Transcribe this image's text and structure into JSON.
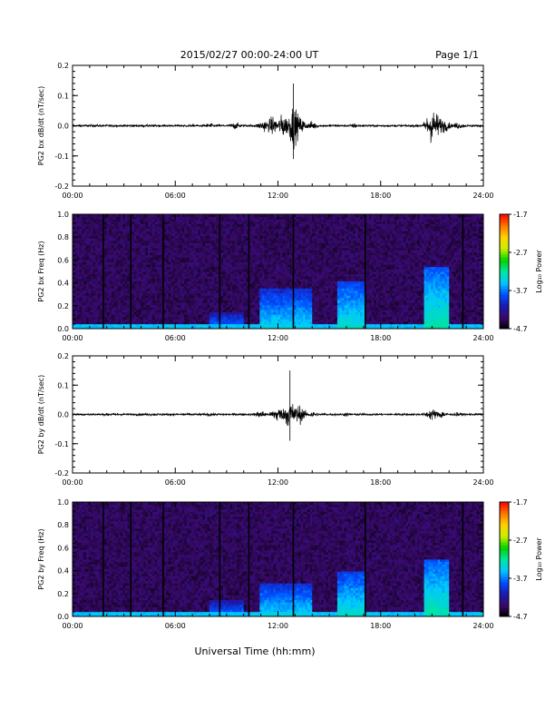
{
  "header": {
    "date_range": "2015/02/27  00:00-24:00 UT",
    "page": "Page 1/1"
  },
  "xlabel": "Universal Time (hh:mm)",
  "colors": {
    "trace": "#000000",
    "axes": "#000000",
    "colormap": [
      "#000000",
      "#3a0a6e",
      "#1a1ab0",
      "#0050ff",
      "#00c8ff",
      "#00e6a0",
      "#00d200",
      "#c8f000",
      "#ffd200",
      "#ff7800",
      "#ff0000"
    ]
  },
  "chart_data": [
    {
      "type": "line",
      "ylabel": "PG2 bx dB/dt (nT/sec)",
      "xlim": [
        0,
        24
      ],
      "ylim": [
        -0.2,
        0.2
      ],
      "xticks": [
        "00:00",
        "06:00",
        "12:00",
        "18:00",
        "24:00"
      ],
      "yticks": [
        "-0.2",
        "-0.1",
        "0.0",
        "0.1",
        "0.2"
      ],
      "ytick_values": [
        -0.2,
        -0.1,
        0.0,
        0.1,
        0.2
      ],
      "noise_floor": 0.006,
      "envelope": [
        {
          "x": 8.0,
          "amp": 0.015
        },
        {
          "x": 9.5,
          "amp": 0.02
        },
        {
          "x": 11.2,
          "amp": 0.035
        },
        {
          "x": 11.7,
          "amp": 0.055
        },
        {
          "x": 12.3,
          "amp": 0.07
        },
        {
          "x": 12.9,
          "amp": 0.12
        },
        {
          "x": 13.3,
          "amp": 0.05
        },
        {
          "x": 14.0,
          "amp": 0.025
        },
        {
          "x": 16.5,
          "amp": 0.015
        },
        {
          "x": 21.0,
          "amp": 0.1
        },
        {
          "x": 21.3,
          "amp": 0.07
        },
        {
          "x": 21.7,
          "amp": 0.04
        },
        {
          "x": 22.5,
          "amp": 0.02
        }
      ],
      "peak_max": 0.14,
      "peak_min": -0.11
    },
    {
      "type": "heatmap",
      "ylabel": "PG2 bx Freq (Hz)",
      "xlim": [
        0,
        24
      ],
      "ylim": [
        0.0,
        1.0
      ],
      "xticks": [
        "00:00",
        "06:00",
        "12:00",
        "18:00",
        "24:00"
      ],
      "yticks": [
        "0.0",
        "0.2",
        "0.4",
        "0.6",
        "0.8",
        "1.0"
      ],
      "ytick_values": [
        0.0,
        0.2,
        0.4,
        0.6,
        0.8,
        1.0
      ],
      "colorbar": {
        "label": "Log₁₀ Power",
        "range": [
          -4.7,
          -1.7
        ],
        "ticks": [
          "-1.7",
          "-2.7",
          "-3.7",
          "-4.7"
        ],
        "tick_values": [
          -1.7,
          -2.7,
          -3.7,
          -4.7
        ]
      },
      "data_gaps_hours": [
        1.8,
        3.4,
        5.3,
        8.6,
        10.3,
        12.9,
        17.1,
        22.8
      ],
      "enhancements": [
        {
          "t0": 8.0,
          "t1": 10.0,
          "fmax": 0.15,
          "level": -3.6
        },
        {
          "t0": 11.0,
          "t1": 14.0,
          "fmax": 0.35,
          "level": -3.4
        },
        {
          "t0": 15.5,
          "t1": 17.0,
          "fmax": 0.42,
          "level": -3.3
        },
        {
          "t0": 20.5,
          "t1": 22.0,
          "fmax": 0.55,
          "level": -3.2
        }
      ]
    },
    {
      "type": "line",
      "ylabel": "PG2 by dB/dt (nT/sec)",
      "xlim": [
        0,
        24
      ],
      "ylim": [
        -0.2,
        0.2
      ],
      "xticks": [
        "00:00",
        "06:00",
        "12:00",
        "18:00",
        "24:00"
      ],
      "yticks": [
        "-0.2",
        "-0.1",
        "0.0",
        "0.1",
        "0.2"
      ],
      "ytick_values": [
        -0.2,
        -0.1,
        0.0,
        0.1,
        0.2
      ],
      "noise_floor": 0.006,
      "envelope": [
        {
          "x": 8.0,
          "amp": 0.012
        },
        {
          "x": 11.0,
          "amp": 0.025
        },
        {
          "x": 12.0,
          "amp": 0.05
        },
        {
          "x": 12.7,
          "amp": 0.09
        },
        {
          "x": 13.2,
          "amp": 0.06
        },
        {
          "x": 14.0,
          "amp": 0.02
        },
        {
          "x": 16.0,
          "amp": 0.012
        },
        {
          "x": 21.0,
          "amp": 0.035
        },
        {
          "x": 21.5,
          "amp": 0.025
        },
        {
          "x": 22.5,
          "amp": 0.012
        }
      ],
      "peak_max": 0.15,
      "peak_min": -0.09
    },
    {
      "type": "heatmap",
      "ylabel": "PG2 by Freq (Hz)",
      "xlim": [
        0,
        24
      ],
      "ylim": [
        0.0,
        1.0
      ],
      "xticks": [
        "00:00",
        "06:00",
        "12:00",
        "18:00",
        "24:00"
      ],
      "yticks": [
        "0.0",
        "0.2",
        "0.4",
        "0.6",
        "0.8",
        "1.0"
      ],
      "ytick_values": [
        0.0,
        0.2,
        0.4,
        0.6,
        0.8,
        1.0
      ],
      "colorbar": {
        "label": "Log₁₀ Power",
        "range": [
          -4.7,
          -1.7
        ],
        "ticks": [
          "-1.7",
          "-2.7",
          "-3.7",
          "-4.7"
        ],
        "tick_values": [
          -1.7,
          -2.7,
          -3.7,
          -4.7
        ]
      },
      "data_gaps_hours": [
        1.8,
        3.4,
        5.3,
        8.6,
        10.3,
        12.9,
        17.1,
        22.8
      ],
      "enhancements": [
        {
          "t0": 8.0,
          "t1": 10.0,
          "fmax": 0.15,
          "level": -3.6
        },
        {
          "t0": 11.0,
          "t1": 14.0,
          "fmax": 0.3,
          "level": -3.4
        },
        {
          "t0": 15.5,
          "t1": 17.0,
          "fmax": 0.4,
          "level": -3.3
        },
        {
          "t0": 20.5,
          "t1": 22.0,
          "fmax": 0.5,
          "level": -3.2
        }
      ]
    }
  ]
}
